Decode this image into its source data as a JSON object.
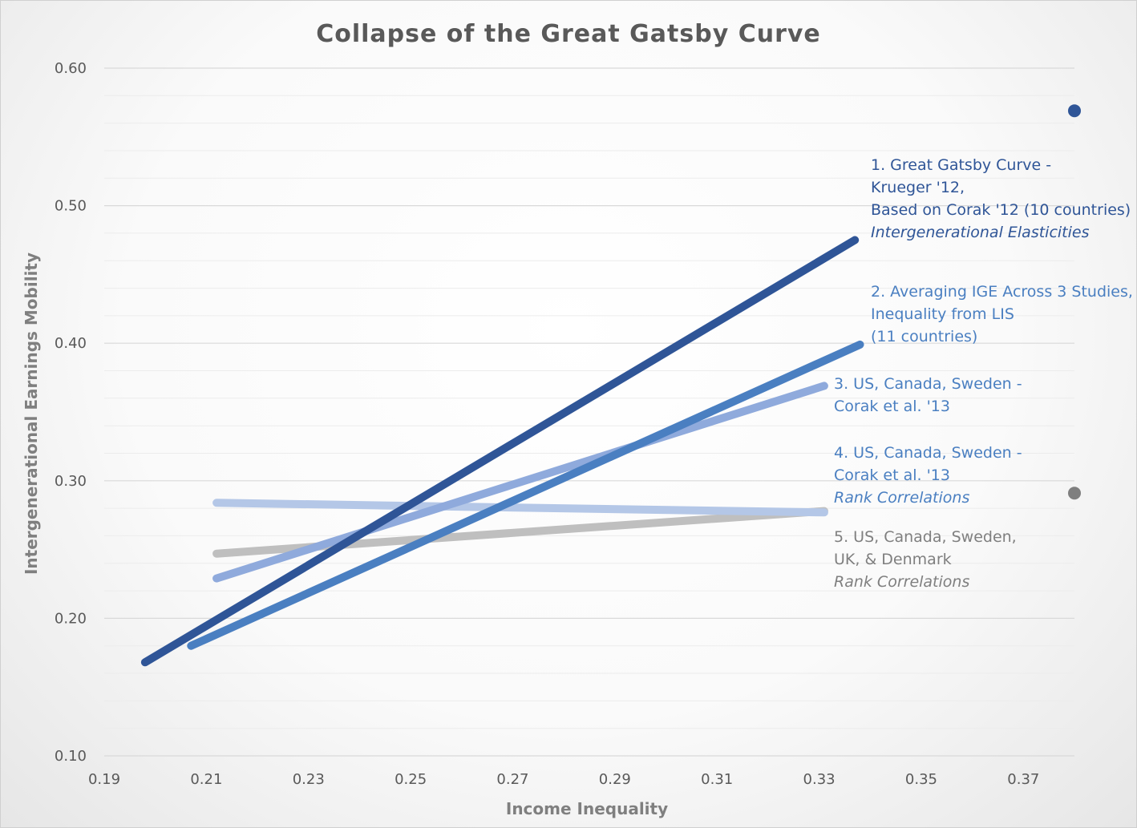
{
  "chart_data": {
    "type": "line",
    "title": "Collapse of the Great Gatsby Curve",
    "xlabel": "Income Inequality",
    "ylabel": "Intergenerational Earnings Mobility",
    "xlim": [
      0.19,
      0.38
    ],
    "ylim": [
      0.1,
      0.6
    ],
    "x_ticks": [
      "0.19",
      "0.21",
      "0.23",
      "0.25",
      "0.27",
      "0.29",
      "0.31",
      "0.33",
      "0.35",
      "0.37"
    ],
    "y_ticks": [
      "0.10",
      "0.20",
      "0.30",
      "0.40",
      "0.50",
      "0.60"
    ],
    "grid": true,
    "series": [
      {
        "name": "5. US, Canada, Sweden, UK, & Denmark Rank Correlations",
        "color": "#bfbfbf",
        "x": [
          0.212,
          0.331
        ],
        "y": [
          0.247,
          0.278
        ],
        "width": 10
      },
      {
        "name": "4. US, Canada, Sweden - Corak et al. '13 Rank Correlations",
        "color": "#b4c7e7",
        "x": [
          0.212,
          0.331
        ],
        "y": [
          0.284,
          0.277
        ],
        "width": 10
      },
      {
        "name": "3. US, Canada, Sweden - Corak et al. '13",
        "color": "#8faadc",
        "x": [
          0.212,
          0.331
        ],
        "y": [
          0.229,
          0.369
        ],
        "width": 10
      },
      {
        "name": "2. Averaging IGE Across 3 Studies, Inequality from LIS (11 countries)",
        "color": "#4a7fc1",
        "x": [
          0.207,
          0.338
        ],
        "y": [
          0.18,
          0.399
        ],
        "width": 10
      },
      {
        "name": "1. Great Gatsby Curve - Krueger '12, Based on Corak '12 (10 countries) Intergenerational Elasticities",
        "color": "#2f5597",
        "x": [
          0.198,
          0.337
        ],
        "y": [
          0.168,
          0.475
        ],
        "width": 10
      }
    ],
    "points": [
      {
        "x": 0.38,
        "y": 0.569,
        "color": "#2f5597"
      },
      {
        "x": 0.38,
        "y": 0.291,
        "color": "#7f7f7f"
      }
    ],
    "annotations": [
      {
        "color": "#2f5597",
        "lines": [
          {
            "text": "1. Great Gatsby Curve -",
            "italic": false
          },
          {
            "text": "Krueger '12,",
            "italic": false
          },
          {
            "text": "Based on Corak '12 (10 countries)",
            "italic": false
          },
          {
            "text": "Intergenerational Elasticities",
            "italic": true
          }
        ]
      },
      {
        "color": "#4a7fc1",
        "lines": [
          {
            "text": "2. Averaging IGE Across 3 Studies,",
            "italic": false
          },
          {
            "text": "Inequality from LIS",
            "italic": false
          },
          {
            "text": "(11 countries)",
            "italic": false
          }
        ]
      },
      {
        "color": "#4a7fc1",
        "lines": [
          {
            "text": "3. US, Canada, Sweden -",
            "italic": false
          },
          {
            "text": "Corak et al. '13",
            "italic": false
          }
        ]
      },
      {
        "color": "#4a7fc1",
        "lines": [
          {
            "text": "4. US, Canada, Sweden -",
            "italic": false
          },
          {
            "text": "Corak et al. '13",
            "italic": false
          },
          {
            "text": "Rank Correlations",
            "italic": true
          }
        ]
      },
      {
        "color": "#7f7f7f",
        "lines": [
          {
            "text": "5. US, Canada, Sweden,",
            "italic": false
          },
          {
            "text": "UK, & Denmark",
            "italic": false
          },
          {
            "text": "Rank Correlations",
            "italic": true
          }
        ]
      }
    ]
  }
}
